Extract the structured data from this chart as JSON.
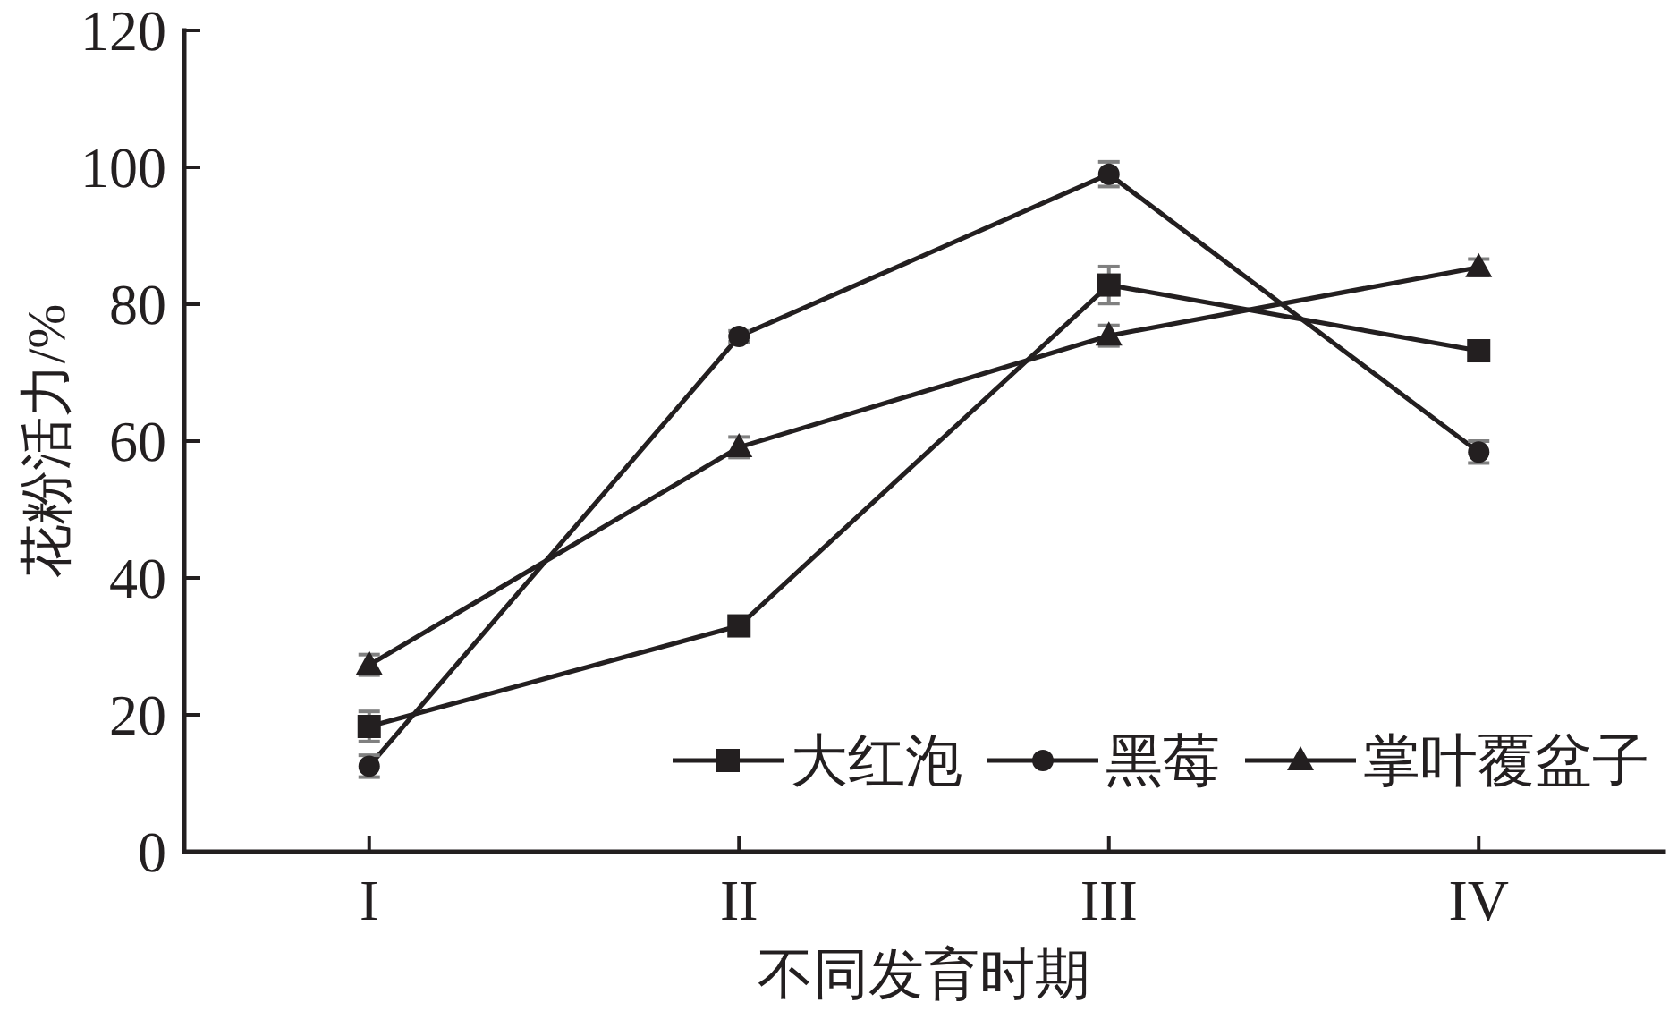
{
  "chart_data": {
    "type": "line",
    "xlabel": "不同发育时期",
    "ylabel": "花粉活力/%",
    "categories": [
      "I",
      "II",
      "III",
      "IV"
    ],
    "ylim": [
      0,
      120
    ],
    "yticks": [
      0,
      20,
      40,
      60,
      80,
      100,
      120
    ],
    "legend": "bottom right",
    "line_style": "solid",
    "series": [
      {
        "name": "大红泡",
        "color": "#231f20",
        "marker": "square",
        "values": [
          18.3,
          33.0,
          82.8,
          73.2
        ],
        "errors": [
          2.2,
          1.0,
          2.7,
          0.8
        ]
      },
      {
        "name": "黑莓",
        "color": "#231f20",
        "marker": "circle",
        "values": [
          12.5,
          75.3,
          99.0,
          58.4
        ],
        "errors": [
          1.6,
          0.8,
          1.8,
          1.6
        ]
      },
      {
        "name": "掌叶覆盆子",
        "color": "#231f20",
        "marker": "triangle",
        "values": [
          27.3,
          59.1,
          75.4,
          85.4
        ],
        "errors": [
          1.5,
          1.5,
          1.5,
          1.2
        ]
      }
    ]
  }
}
